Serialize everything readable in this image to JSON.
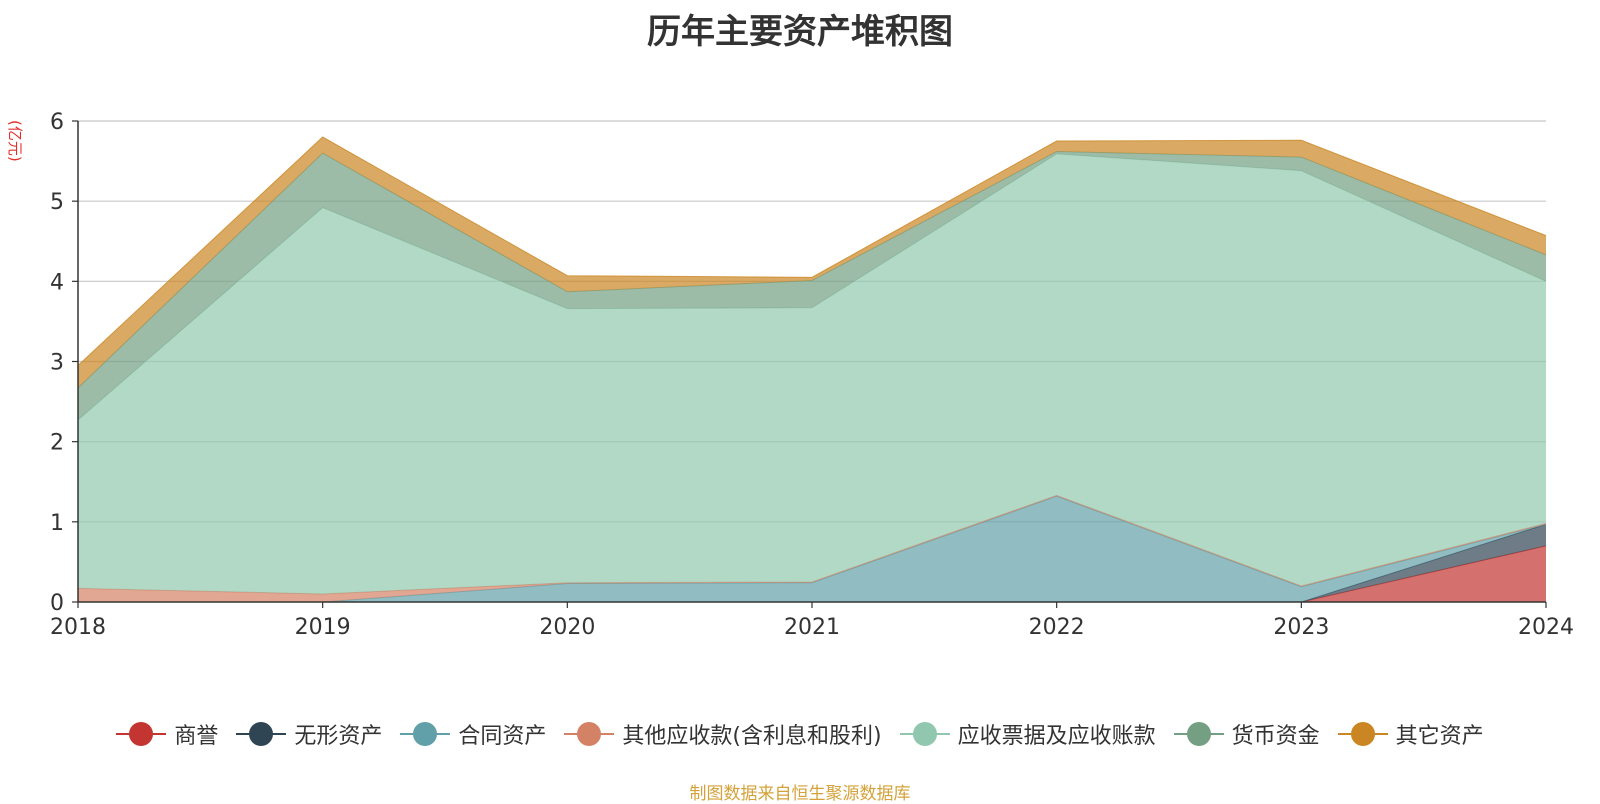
{
  "chart_data": {
    "type": "area",
    "stacked": true,
    "title": "历年主要资产堆积图",
    "unit_label": "(亿元)",
    "categories": [
      "2018",
      "2019",
      "2020",
      "2021",
      "2022",
      "2023",
      "2024"
    ],
    "ylim": [
      0,
      6
    ],
    "yticks": [
      "0",
      "1",
      "2",
      "3",
      "4",
      "5",
      "6"
    ],
    "grid": true,
    "legend_position": "bottom",
    "series": [
      {
        "name": "商誉",
        "color": "#c23531",
        "values": [
          0,
          0,
          0,
          0,
          0,
          0,
          0.7
        ]
      },
      {
        "name": "无形资产",
        "color": "#2f4554",
        "values": [
          0,
          0,
          0,
          0,
          0,
          0,
          0.27
        ]
      },
      {
        "name": "合同资产",
        "color": "#61a0a8",
        "values": [
          0,
          0,
          0.23,
          0.24,
          1.32,
          0.19,
          0
        ]
      },
      {
        "name": "其他应收款(含利息和股利)",
        "color": "#d48265",
        "values": [
          0.17,
          0.1,
          0.01,
          0.01,
          0.01,
          0.01,
          0.01
        ]
      },
      {
        "name": "应收票据及应收账款",
        "color": "#91c7ae",
        "values": [
          2.1,
          4.82,
          3.42,
          3.42,
          4.26,
          5.18,
          3.02
        ]
      },
      {
        "name": "货币资金",
        "color": "#749f83",
        "values": [
          0.4,
          0.68,
          0.21,
          0.34,
          0.03,
          0.17,
          0.33
        ]
      },
      {
        "name": "其它资产",
        "color": "#ca8622",
        "values": [
          0.28,
          0.2,
          0.2,
          0.04,
          0.13,
          0.21,
          0.24
        ]
      }
    ]
  },
  "source_text": "制图数据来自恒生聚源数据库"
}
